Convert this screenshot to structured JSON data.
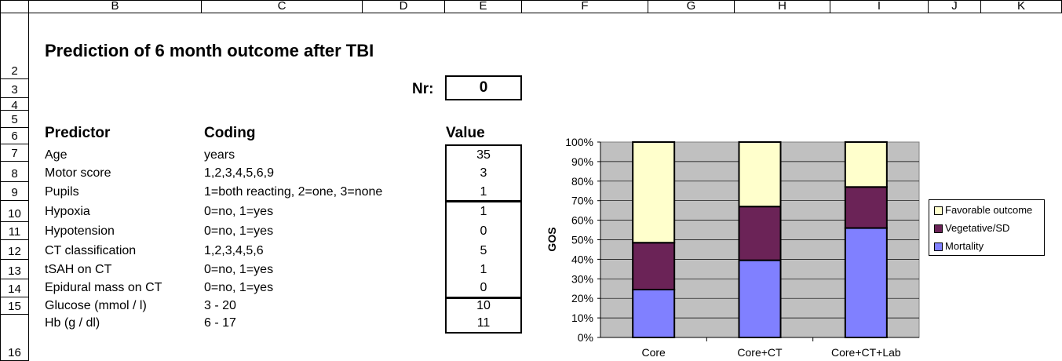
{
  "columns": [
    "B",
    "C",
    "D",
    "E",
    "F",
    "G",
    "H",
    "I",
    "J",
    "K"
  ],
  "rows": [
    "2",
    "3",
    "4",
    "5",
    "6",
    "7",
    "8",
    "9",
    "10",
    "11",
    "12",
    "13",
    "14",
    "15",
    "16"
  ],
  "title": "Prediction of 6 month outcome after TBI",
  "nr": {
    "label": "Nr:",
    "value": "0"
  },
  "headers": {
    "predictor": "Predictor",
    "coding": "Coding",
    "value": "Value"
  },
  "predictors": [
    {
      "name": "Age",
      "coding": "years",
      "value": "35"
    },
    {
      "name": "Motor score",
      "coding": "1,2,3,4,5,6,9",
      "value": "3"
    },
    {
      "name": "Pupils",
      "coding": "1=both reacting, 2=one, 3=none",
      "value": "1"
    },
    {
      "name": "Hypoxia",
      "coding": "0=no, 1=yes",
      "value": "1"
    },
    {
      "name": "Hypotension",
      "coding": "0=no, 1=yes",
      "value": "0"
    },
    {
      "name": "CT classification",
      "coding": "1,2,3,4,5,6",
      "value": "5"
    },
    {
      "name": "tSAH on CT",
      "coding": "0=no, 1=yes",
      "value": "1"
    },
    {
      "name": "Epidural mass on CT",
      "coding": "0=no, 1=yes",
      "value": "0"
    },
    {
      "name": "Glucose (mmol / l)",
      "coding": "3 - 20",
      "value": "10"
    },
    {
      "name": "Hb (g / dl)",
      "coding": "6 - 17",
      "value": "11"
    }
  ],
  "colors": {
    "mortality": "#8080ff",
    "vegetative": "#6b2357",
    "favorable": "#ffffcc",
    "plot_bg": "#c0c0c0"
  },
  "chart_data": {
    "type": "bar",
    "stacked": true,
    "categories": [
      "Core",
      "Core+CT",
      "Core+CT+Lab"
    ],
    "series": [
      {
        "name": "Mortality",
        "values": [
          24.5,
          39.5,
          56
        ]
      },
      {
        "name": "Vegetative/SD",
        "values": [
          24,
          27.5,
          21
        ]
      },
      {
        "name": "Favorable outcome",
        "values": [
          51.5,
          33,
          23
        ]
      }
    ],
    "ylabel": "GOS",
    "yticks": [
      "0%",
      "10%",
      "20%",
      "30%",
      "40%",
      "50%",
      "60%",
      "70%",
      "80%",
      "90%",
      "100%"
    ],
    "ylim": [
      0,
      100
    ],
    "legend_position": "right",
    "grid": true
  }
}
